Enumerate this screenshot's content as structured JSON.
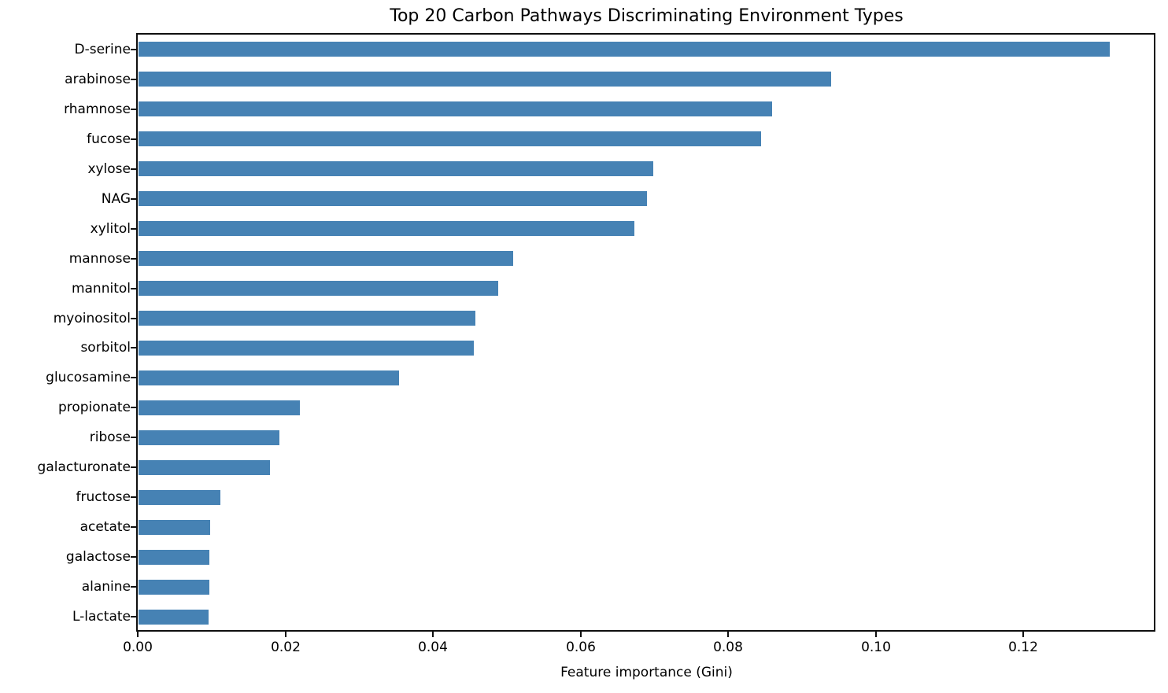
{
  "chart_data": {
    "type": "bar",
    "orientation": "horizontal",
    "title": "Top 20 Carbon Pathways Discriminating Environment Types",
    "xlabel": "Feature importance (Gini)",
    "ylabel": "",
    "categories": [
      "D-serine",
      "arabinose",
      "rhamnose",
      "fucose",
      "xylose",
      "NAG",
      "xylitol",
      "mannose",
      "mannitol",
      "myoinositol",
      "sorbitol",
      "glucosamine",
      "propionate",
      "ribose",
      "galacturonate",
      "fructose",
      "acetate",
      "galactose",
      "alanine",
      "L-lactate"
    ],
    "values": [
      0.1316,
      0.0939,
      0.0859,
      0.0844,
      0.0697,
      0.0689,
      0.0672,
      0.0508,
      0.0487,
      0.0456,
      0.0454,
      0.0353,
      0.0219,
      0.0191,
      0.0178,
      0.0111,
      0.0097,
      0.0096,
      0.0096,
      0.0095
    ],
    "xticks": [
      0.0,
      0.02,
      0.04,
      0.06,
      0.08,
      0.1,
      0.12
    ],
    "xtick_labels": [
      "0.00",
      "0.02",
      "0.04",
      "0.06",
      "0.08",
      "0.10",
      "0.12"
    ],
    "xlim": [
      0,
      0.1379
    ],
    "bar_color": "#4682B4",
    "axis_color": "#0f0f0f",
    "grid": false
  }
}
